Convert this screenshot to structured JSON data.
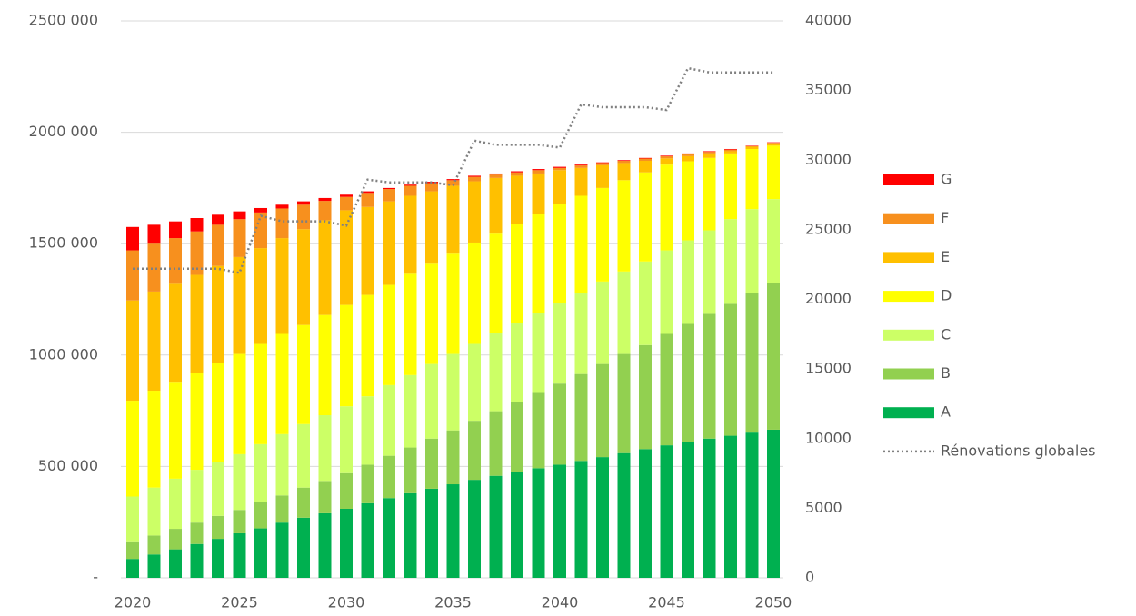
{
  "chart_data": {
    "type": "bar",
    "stacked": true,
    "categories": [
      "2020",
      null,
      null,
      null,
      null,
      "2025",
      null,
      null,
      null,
      null,
      "2030",
      null,
      null,
      null,
      null,
      "2035",
      null,
      null,
      null,
      null,
      "2040",
      null,
      null,
      null,
      null,
      "2045",
      null,
      null,
      null,
      null,
      "2050"
    ],
    "series": [
      {
        "name": "A",
        "color": "#00b050",
        "values": [
          85000,
          105000,
          128000,
          152000,
          175000,
          200000,
          222000,
          248000,
          270000,
          290000,
          310000,
          335000,
          358000,
          380000,
          400000,
          420000,
          440000,
          458000,
          475000,
          492000,
          508000,
          525000,
          542000,
          560000,
          578000,
          595000,
          610000,
          625000,
          638000,
          652000,
          665000
        ]
      },
      {
        "name": "B",
        "color": "#92d050",
        "values": [
          75000,
          85000,
          92000,
          96000,
          103000,
          105000,
          118000,
          122000,
          135000,
          145000,
          160000,
          173000,
          190000,
          205000,
          225000,
          242000,
          265000,
          290000,
          313000,
          338000,
          364000,
          390000,
          418000,
          445000,
          467000,
          500000,
          530000,
          560000,
          592000,
          628000,
          660000
        ]
      },
      {
        "name": "C",
        "color": "#ccff66",
        "values": [
          205000,
          215000,
          225000,
          237000,
          242000,
          250000,
          260000,
          275000,
          285000,
          295000,
          300000,
          307000,
          317000,
          325000,
          335000,
          343000,
          345000,
          352000,
          357000,
          360000,
          363000,
          365000,
          370000,
          370000,
          375000,
          375000,
          375000,
          375000,
          380000,
          375000,
          375000
        ]
      },
      {
        "name": "D",
        "color": "#ffff00",
        "values": [
          430000,
          435000,
          435000,
          435000,
          445000,
          450000,
          450000,
          450000,
          445000,
          450000,
          455000,
          455000,
          450000,
          455000,
          450000,
          450000,
          455000,
          445000,
          445000,
          445000,
          445000,
          435000,
          420000,
          410000,
          400000,
          385000,
          355000,
          325000,
          295000,
          270000,
          240000
        ]
      },
      {
        "name": "E",
        "color": "#ffc000",
        "values": [
          450000,
          445000,
          440000,
          440000,
          435000,
          435000,
          430000,
          430000,
          430000,
          425000,
          425000,
          395000,
          375000,
          350000,
          325000,
          305000,
          275000,
          250000,
          215000,
          180000,
          150000,
          125000,
          102000,
          77000,
          52000,
          28000,
          23000,
          20000,
          10000,
          10000,
          10000
        ]
      },
      {
        "name": "F",
        "color": "#f7901e",
        "values": [
          225000,
          215000,
          205000,
          195000,
          185000,
          170000,
          160000,
          133000,
          110000,
          87000,
          60000,
          63000,
          55000,
          45000,
          37000,
          25000,
          20000,
          15000,
          15000,
          15000,
          10000,
          11000,
          10000,
          10000,
          10000,
          9000,
          9000,
          7000,
          7000,
          3000,
          3000
        ]
      },
      {
        "name": "G",
        "color": "#ff0000",
        "values": [
          105000,
          85000,
          75000,
          60000,
          45000,
          35000,
          20000,
          17000,
          15000,
          13000,
          10000,
          7000,
          5000,
          5000,
          6000,
          5000,
          5000,
          5000,
          5000,
          5000,
          5000,
          4000,
          3000,
          3000,
          3000,
          3000,
          3000,
          3000,
          3000,
          2000,
          2000
        ]
      },
      {
        "name": "Rénovations globales",
        "type": "line",
        "axis": "y2",
        "color": "#808080",
        "dash": "dotted",
        "values": [
          22200,
          22200,
          22200,
          22200,
          22200,
          21900,
          26000,
          25600,
          25600,
          25600,
          25300,
          28600,
          28400,
          28400,
          28400,
          28200,
          31400,
          31100,
          31100,
          31100,
          30900,
          34000,
          33800,
          33800,
          33800,
          33600,
          36600,
          36300,
          36300,
          36300,
          36300
        ]
      }
    ],
    "ylim": [
      0,
      2500000
    ],
    "yticks": [
      {
        "value": 0,
        "label": "-"
      },
      {
        "value": 500000,
        "label": "500 000"
      },
      {
        "value": 1000000,
        "label": "1000 000"
      },
      {
        "value": 1500000,
        "label": "1500 000"
      },
      {
        "value": 2000000,
        "label": "2000 000"
      },
      {
        "value": 2500000,
        "label": "2500 000"
      }
    ],
    "y2lim": [
      0,
      40000
    ],
    "y2ticks": [
      0,
      5000,
      10000,
      15000,
      20000,
      25000,
      30000,
      35000,
      40000
    ],
    "grid": true,
    "legend": "right"
  }
}
